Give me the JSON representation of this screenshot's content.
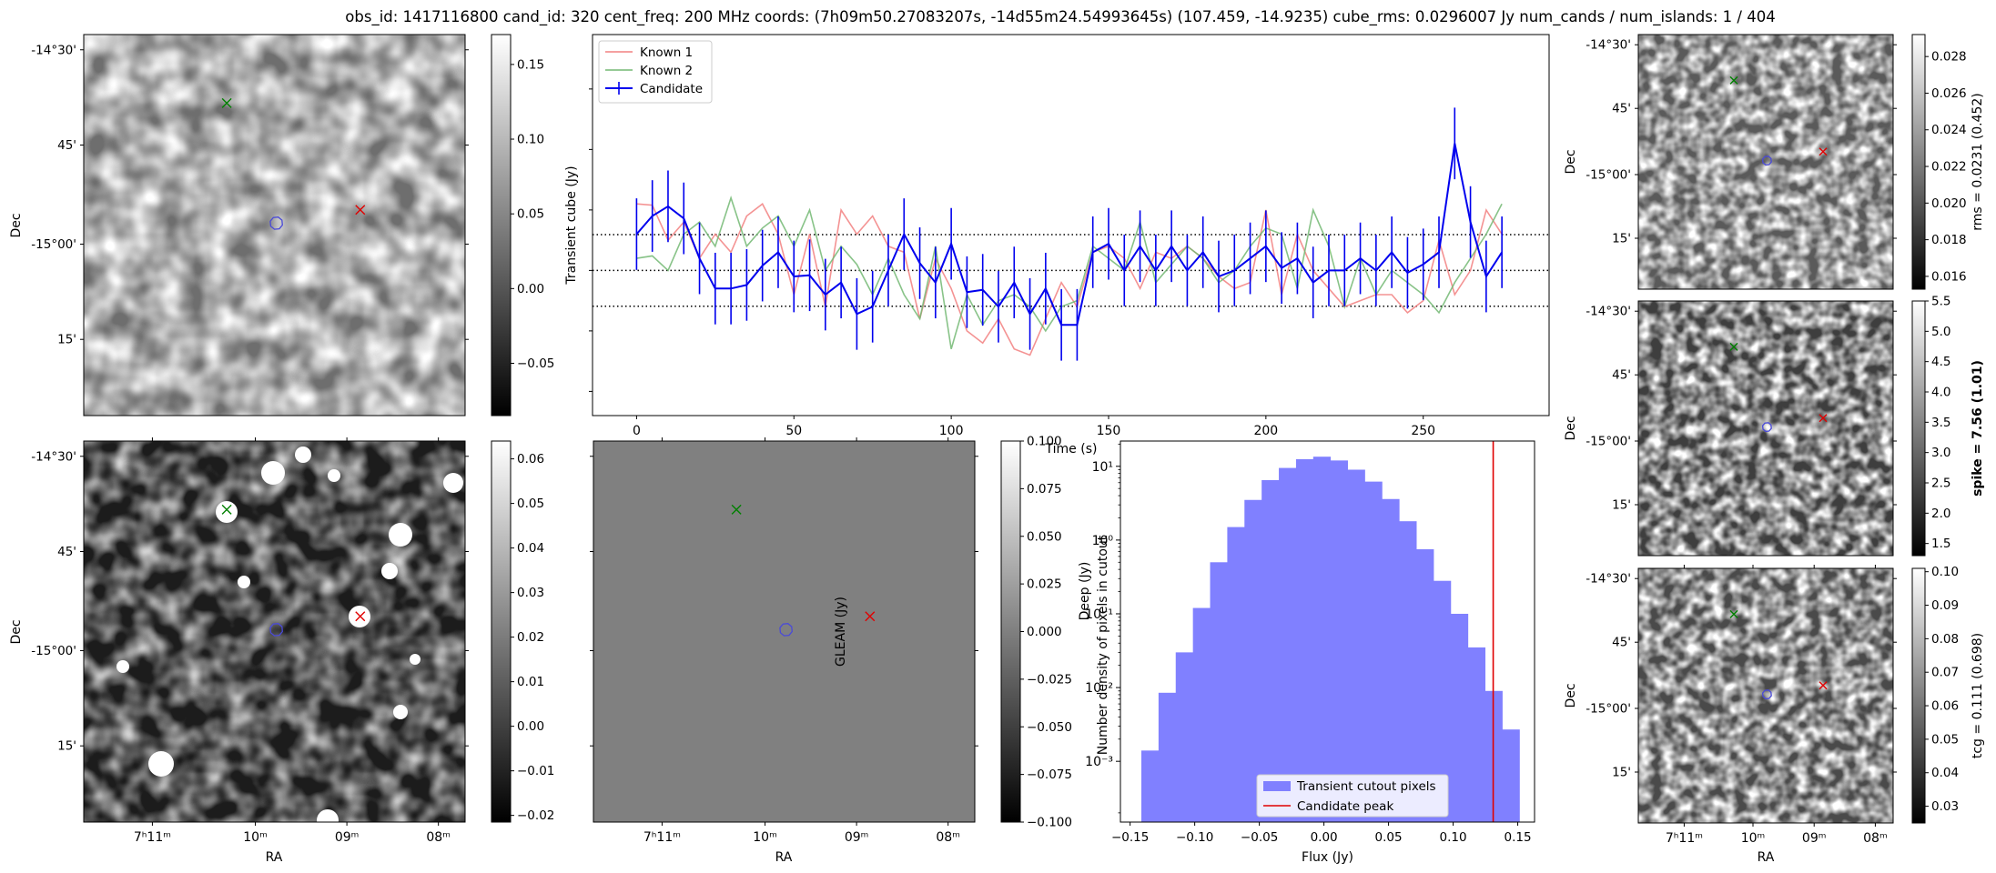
{
  "figure_title": "obs_id: 1417116800 cand_id: 320 cent_freq: 200 MHz coords: (7h09m50.27083207s, -14d55m24.54993645s) (107.459, -14.9235) cube_rms: 0.0296007 Jy num_cands / num_islands: 1 / 404",
  "colors": {
    "known1": "#f28080",
    "known2": "#73b873",
    "candidate": "#0000ee",
    "hist_fill": "#8080ff",
    "peak_line": "#e00000",
    "marker_green": "#008000",
    "marker_red": "#e00000"
  },
  "sky_axes": {
    "dec_ticks": [
      "-14°30'",
      "45'",
      "-15°00'",
      "15'"
    ],
    "dec_label": "Dec",
    "ra_ticks": [
      "7ʰ11ᵐ",
      "10ᵐ",
      "09ᵐ",
      "08ᵐ"
    ],
    "ra_label": "RA"
  },
  "chart_data": [
    {
      "type": "heatmap",
      "panel": "transient-cutout",
      "ylabel": "Dec",
      "colorbar": {
        "ticks": [
          0.15,
          0.1,
          0.05,
          0.0,
          -0.05
        ],
        "tick_labels": [
          "0.15",
          "0.10",
          "0.05",
          "0.00",
          "−0.05"
        ],
        "range": [
          -0.085,
          0.17
        ],
        "label": ""
      },
      "markers": [
        "green-x",
        "red-x",
        "blue-contour"
      ]
    },
    {
      "type": "line",
      "panel": "lightcurve",
      "xlabel": "Time (s)",
      "ylabel": "Transient cube (Jy)",
      "xlim": [
        -14,
        290
      ],
      "ylim": [
        -0.12,
        0.195
      ],
      "x_ticks": [
        0,
        50,
        100,
        150,
        200,
        250
      ],
      "hlines": [
        0.0296,
        0.0,
        -0.0296
      ],
      "legend": [
        "Known 1",
        "Known 2",
        "Candidate"
      ],
      "x": [
        0,
        5,
        10,
        15,
        20,
        25,
        30,
        35,
        40,
        45,
        50,
        55,
        60,
        65,
        70,
        75,
        80,
        85,
        90,
        95,
        100,
        105,
        110,
        115,
        120,
        125,
        130,
        135,
        140,
        145,
        150,
        155,
        160,
        165,
        170,
        175,
        180,
        185,
        190,
        195,
        200,
        205,
        210,
        215,
        220,
        225,
        230,
        235,
        240,
        245,
        250,
        255,
        260,
        265,
        270,
        275
      ],
      "series": [
        {
          "name": "Known 1",
          "values": [
            0.055,
            0.054,
            0.025,
            0.04,
            0.01,
            0.03,
            0.015,
            0.045,
            0.055,
            0.03,
            -0.02,
            0.03,
            -0.03,
            0.05,
            0.03,
            0.045,
            0.02,
            0.015,
            -0.04,
            0.01,
            -0.015,
            -0.05,
            -0.06,
            -0.04,
            -0.065,
            -0.07,
            -0.04,
            -0.01,
            -0.03,
            0.015,
            0.02,
            0.01,
            -0.015,
            0.015,
            0.01,
            0.02,
            0.01,
            -0.005,
            -0.015,
            -0.01,
            0.05,
            -0.02,
            0.03,
            0.0,
            -0.015,
            -0.03,
            -0.025,
            -0.02,
            -0.02,
            -0.035,
            -0.025,
            0.025,
            -0.02,
            0.0,
            0.05,
            0.03
          ]
        },
        {
          "name": "Known 2",
          "values": [
            0.01,
            0.012,
            0.0,
            0.03,
            0.04,
            0.02,
            0.06,
            0.02,
            0.035,
            0.045,
            0.02,
            0.05,
            0.0,
            0.02,
            0.005,
            -0.02,
            0.01,
            -0.02,
            -0.04,
            0.02,
            -0.065,
            -0.02,
            -0.045,
            -0.025,
            -0.02,
            -0.03,
            -0.05,
            -0.03,
            -0.025,
            0.02,
            0.01,
            0.0,
            0.04,
            -0.01,
            0.005,
            0.02,
            0.01,
            -0.01,
            0.0,
            0.02,
            0.035,
            0.03,
            -0.015,
            0.05,
            0.02,
            -0.03,
            0.01,
            -0.02,
            0.0,
            -0.01,
            -0.02,
            -0.035,
            -0.01,
            0.01,
            0.03,
            0.055
          ]
        },
        {
          "name": "Candidate",
          "values": [
            0.03,
            0.045,
            0.053,
            0.043,
            0.01,
            -0.015,
            -0.015,
            -0.012,
            0.004,
            0.015,
            -0.005,
            -0.004,
            -0.02,
            -0.01,
            -0.036,
            -0.03,
            0.0,
            0.03,
            0.006,
            -0.01,
            0.022,
            -0.018,
            -0.016,
            -0.03,
            -0.01,
            -0.036,
            -0.015,
            -0.045,
            -0.045,
            0.015,
            0.022,
            0.0,
            0.02,
            0.0,
            0.02,
            0.0,
            0.015,
            -0.005,
            0.0,
            0.01,
            0.02,
            0.002,
            0.01,
            -0.01,
            0.0,
            0.0,
            0.01,
            0.0,
            0.015,
            -0.002,
            0.005,
            0.015,
            0.105,
            0.04,
            -0.005,
            0.015
          ]
        }
      ],
      "candidate_error": 0.0296
    },
    {
      "type": "heatmap",
      "panel": "rms-map",
      "ylabel": "Dec",
      "colorbar": {
        "ticks": [
          0.028,
          0.026,
          0.024,
          0.022,
          0.02,
          0.018,
          0.016
        ],
        "tick_labels": [
          "0.028",
          "0.026",
          "0.024",
          "0.022",
          "0.020",
          "0.018",
          "0.016"
        ],
        "range": [
          0.0153,
          0.0292
        ],
        "label": "rms = 0.0231 (0.452)"
      },
      "markers": [
        "green-x",
        "red-x",
        "blue-contour"
      ]
    },
    {
      "type": "heatmap",
      "panel": "deep-image",
      "ylabel": "Dec",
      "xlabel": "RA",
      "colorbar": {
        "ticks": [
          0.06,
          0.05,
          0.04,
          0.03,
          0.02,
          0.01,
          0.0,
          -0.01,
          -0.02
        ],
        "tick_labels": [
          "0.06",
          "0.05",
          "0.04",
          "0.03",
          "0.02",
          "0.01",
          "0.00",
          "−0.01",
          "−0.02"
        ],
        "range": [
          -0.0215,
          0.064
        ],
        "label": ""
      },
      "markers": [
        "green-x",
        "red-x",
        "blue-contour"
      ]
    },
    {
      "type": "heatmap",
      "panel": "gleam-image",
      "xlabel": "RA",
      "colorbar": {
        "ticks": [
          0.1,
          0.075,
          0.05,
          0.025,
          0.0,
          -0.025,
          -0.05,
          -0.075,
          -0.1
        ],
        "tick_labels": [
          "0.100",
          "0.075",
          "0.050",
          "0.025",
          "0.000",
          "−0.025",
          "−0.050",
          "−0.075",
          "−0.100"
        ],
        "range": [
          -0.1,
          0.1
        ],
        "label": "GLEAM (Jy)"
      },
      "markers": [
        "green-x",
        "red-x",
        "blue-contour"
      ]
    },
    {
      "type": "bar",
      "panel": "flux-histogram",
      "xlabel": "Flux (Jy)",
      "ylabel": "Number density of pixels in cutout",
      "ylabel2": "Deep (Jy)",
      "yscale": "log",
      "xlim": [
        -0.1575,
        0.163
      ],
      "ylim": [
        0.00015,
        22
      ],
      "x_ticks": [
        -0.15,
        -0.1,
        -0.05,
        0.0,
        0.05,
        0.1,
        0.15
      ],
      "x_tick_labels": [
        "−0.15",
        "−0.10",
        "−0.05",
        "0.00",
        "0.05",
        "0.10",
        "0.15"
      ],
      "y_ticks": [
        "10¹",
        "10⁰",
        "10⁻¹",
        "10⁻²",
        "10⁻³"
      ],
      "bin_edges": [
        -0.1413,
        -0.128,
        -0.1147,
        -0.1014,
        -0.0881,
        -0.0748,
        -0.0615,
        -0.0482,
        -0.0349,
        -0.0216,
        -0.0083,
        0.005,
        0.0183,
        0.0316,
        0.0449,
        0.0582,
        0.0715,
        0.0848,
        0.0981,
        0.1114,
        0.1247,
        0.138,
        0.1513
      ],
      "values": [
        0.0014,
        0.0085,
        0.03,
        0.12,
        0.5,
        1.5,
        3.5,
        6.5,
        9.5,
        12.5,
        13.5,
        12.0,
        9.0,
        6.2,
        3.6,
        1.8,
        0.75,
        0.28,
        0.1,
        0.035,
        0.009,
        0.0027
      ],
      "peak_line_x": 0.131,
      "legend": [
        "Transient cutout pixels",
        "Candidate peak"
      ]
    },
    {
      "type": "heatmap",
      "panel": "spike-map",
      "ylabel": "Dec",
      "colorbar": {
        "ticks": [
          5.5,
          5.0,
          4.5,
          4.0,
          3.5,
          3.0,
          2.5,
          2.0,
          1.5
        ],
        "tick_labels": [
          "5.5",
          "5.0",
          "4.5",
          "4.0",
          "3.5",
          "3.0",
          "2.5",
          "2.0",
          "1.5"
        ],
        "range": [
          1.3,
          5.5
        ],
        "label": "spike = 7.56 (1.01)"
      },
      "markers": [
        "green-x",
        "red-x",
        "blue-contour"
      ]
    },
    {
      "type": "heatmap",
      "panel": "tcg-map",
      "ylabel": "Dec",
      "xlabel": "RA",
      "colorbar": {
        "ticks": [
          0.1,
          0.09,
          0.08,
          0.07,
          0.06,
          0.05,
          0.04,
          0.03
        ],
        "tick_labels": [
          "0.10",
          "0.09",
          "0.08",
          "0.07",
          "0.06",
          "0.05",
          "0.04",
          "0.03"
        ],
        "range": [
          0.025,
          0.101
        ],
        "label": "tcg = 0.111 (0.698)"
      },
      "markers": [
        "green-x",
        "red-x",
        "blue-contour"
      ]
    }
  ]
}
